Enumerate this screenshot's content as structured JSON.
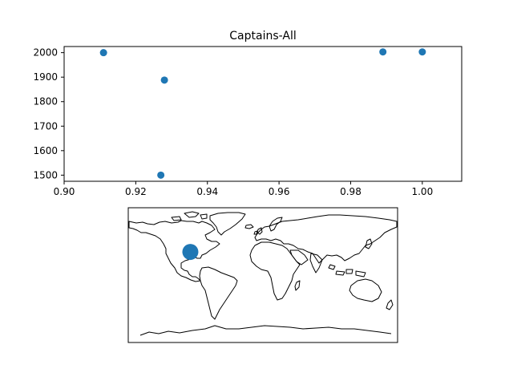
{
  "chart_data": [
    {
      "type": "scatter",
      "title": "Captains-All",
      "xlabel": "",
      "ylabel": "",
      "xlim": [
        0.9,
        1.011
      ],
      "ylim": [
        1475,
        2025
      ],
      "xticks": [
        0.9,
        0.92,
        0.94,
        0.96,
        0.98,
        1.0
      ],
      "xtick_labels": [
        "0.90",
        "0.92",
        "0.94",
        "0.96",
        "0.98",
        "1.00"
      ],
      "yticks": [
        1500,
        1600,
        1700,
        1800,
        1900,
        2000
      ],
      "ytick_labels": [
        "1500",
        "1600",
        "1700",
        "1800",
        "1900",
        "2000"
      ],
      "marker_color": "#1f77b4",
      "grid": false,
      "points": [
        {
          "x": 0.911,
          "y": 2000
        },
        {
          "x": 0.928,
          "y": 1888
        },
        {
          "x": 0.927,
          "y": 1500
        },
        {
          "x": 0.989,
          "y": 2003
        },
        {
          "x": 1.0,
          "y": 2003
        }
      ]
    },
    {
      "type": "map",
      "projection": "equirectangular",
      "features": "world coastlines",
      "marker_color": "#1f77b4",
      "points": [
        {
          "lon": -97,
          "lat": 31,
          "relative_size": "large"
        }
      ]
    }
  ]
}
